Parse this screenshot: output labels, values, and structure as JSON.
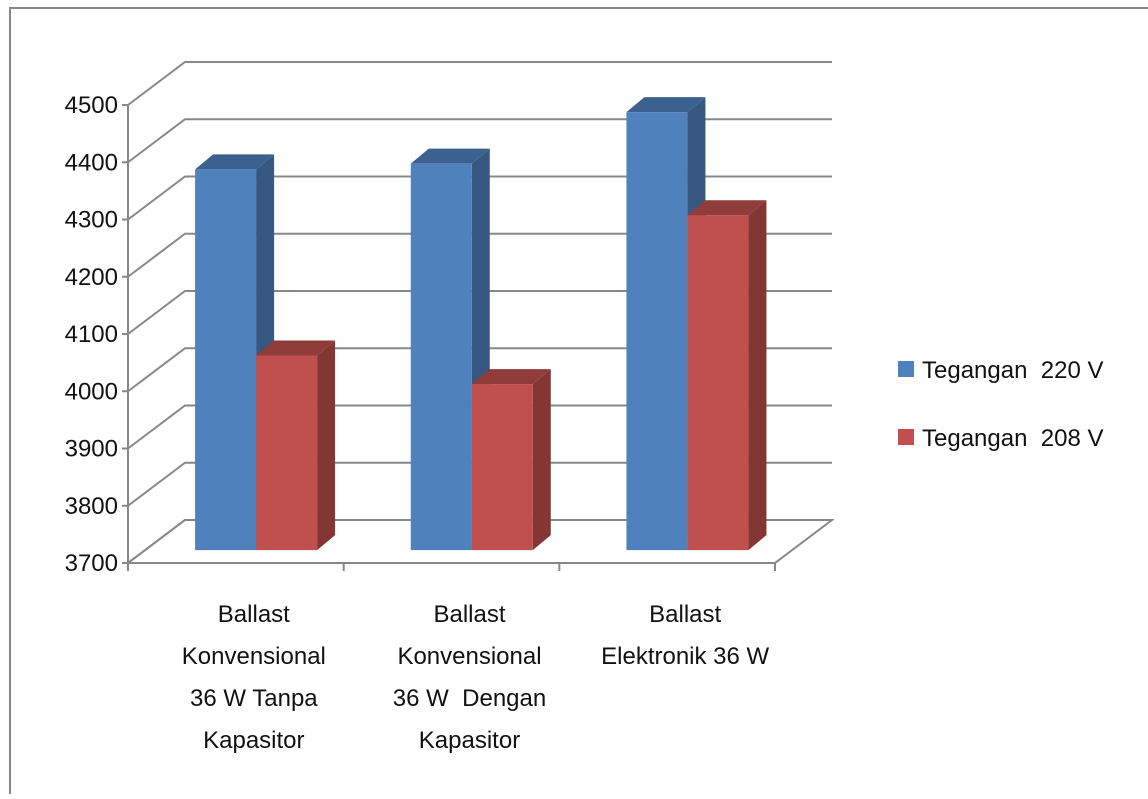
{
  "chart_data": {
    "type": "bar3d",
    "categories": [
      "Ballast\nKonvensional\n36 W Tanpa\nKapasitor",
      "Ballast\nKonvensional\n36 W  Dengan\nKapasitor",
      "Ballast\nElektronik 36 W"
    ],
    "series": [
      {
        "name": "Tegangan  220 V",
        "color": "#4f81bd",
        "values": [
          4365,
          4375,
          4465
        ]
      },
      {
        "name": "Tegangan  208 V",
        "color": "#c0504d",
        "values": [
          4040,
          3990,
          4285
        ]
      }
    ],
    "ylim": [
      3700,
      4500
    ],
    "yticks": [
      3700,
      3800,
      3900,
      4000,
      4100,
      4200,
      4300,
      4400,
      4500
    ],
    "grid": true,
    "legend": "right"
  }
}
